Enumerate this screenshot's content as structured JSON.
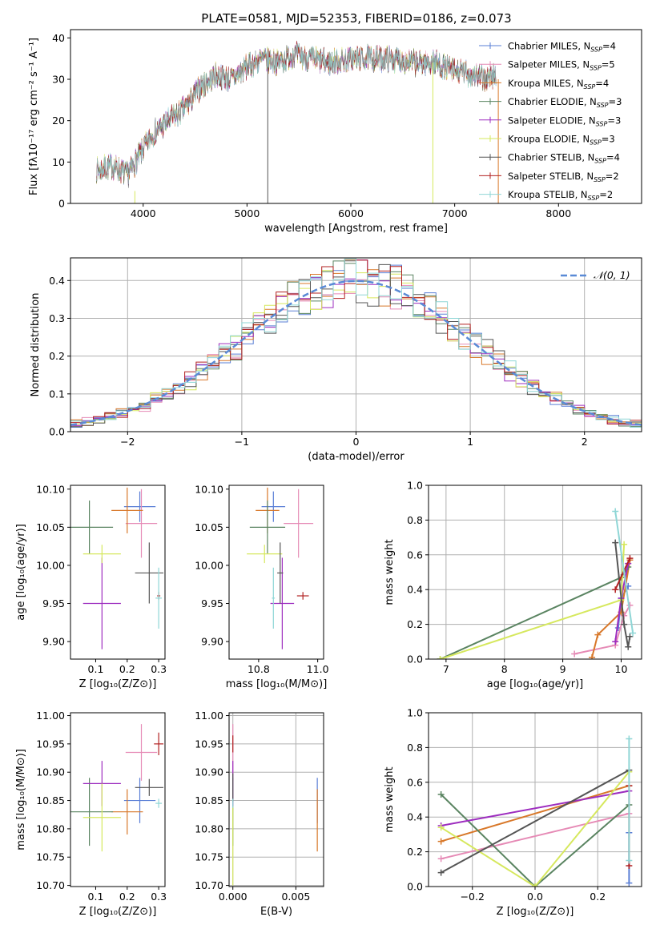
{
  "figure": {
    "title": "PLATE=0581, MJD=52353, FIBERID=0186, z=0.073"
  },
  "colors": {
    "chabrier_miles": "#5a7fd6",
    "salpeter_miles": "#e68bb6",
    "kroupa_miles": "#d8782a",
    "chabrier_elodie": "#5a8461",
    "salpeter_elodie": "#9d2dbf",
    "kroupa_elodie": "#d6e85e",
    "chabrier_stelib": "#555555",
    "salpeter_stelib": "#b22222",
    "kroupa_stelib": "#8fd6d6",
    "normal_curve": "#5a8ad6",
    "grid": "#b0b0b0"
  },
  "chart_data": [
    {
      "id": "spectrum",
      "type": "line",
      "title": "PLATE=0581, MJD=52353, FIBERID=0186, z=0.073",
      "xlabel": "wavelength [Angstrom, rest frame]",
      "ylabel": "Flux [fλ10⁻¹⁷ erg cm⁻² s⁻¹ A⁻¹]",
      "xlim": [
        3300,
        8800
      ],
      "ylim": [
        0,
        42
      ],
      "xticks": [
        4000,
        5000,
        6000,
        7000,
        8000
      ],
      "yticks": [
        0,
        10,
        20,
        30,
        40
      ],
      "grid": false,
      "legend_position": "top-right",
      "legend": [
        {
          "label": "Chabrier MILES, N",
          "sub": "SSP",
          "suffix": "=4"
        },
        {
          "label": "Salpeter MILES, N",
          "sub": "SSP",
          "suffix": "=5"
        },
        {
          "label": "Kroupa MILES, N",
          "sub": "SSP",
          "suffix": "=4"
        },
        {
          "label": "Chabrier ELODIE, N",
          "sub": "SSP",
          "suffix": "=3"
        },
        {
          "label": "Salpeter ELODIE, N",
          "sub": "SSP",
          "suffix": "=3"
        },
        {
          "label": "Kroupa ELODIE, N",
          "sub": "SSP",
          "suffix": "=3"
        },
        {
          "label": "Chabrier STELIB, N",
          "sub": "SSP",
          "suffix": "=4"
        },
        {
          "label": "Salpeter STELIB, N",
          "sub": "SSP",
          "suffix": "=2"
        },
        {
          "label": "Kroupa STELIB, N",
          "sub": "SSP",
          "suffix": "=2"
        }
      ],
      "spectrum_trend": {
        "wavelength": [
          3550,
          3700,
          3850,
          3950,
          4100,
          4250,
          4400,
          4550,
          4700,
          4850,
          5000,
          5150,
          5300,
          5450,
          5600,
          5800,
          6000,
          6200,
          6400,
          6600,
          6800,
          7000,
          7200,
          7300,
          7400
        ],
        "flux": [
          8,
          9,
          7,
          11,
          17,
          20,
          23,
          28,
          31,
          30,
          33,
          35,
          34,
          36,
          35,
          34,
          35,
          35,
          35,
          34,
          34,
          32,
          31,
          30,
          31
        ]
      },
      "spikes": [
        {
          "x": 5200,
          "ymin": 0,
          "ymax": 33
        },
        {
          "x": 6790,
          "ymin": 0,
          "ymax": 34
        },
        {
          "x": 7420,
          "ymin": 0,
          "ymax": 30
        },
        {
          "x": 3920,
          "ymin": 0,
          "ymax": 3
        }
      ]
    },
    {
      "id": "residual-histogram",
      "type": "step",
      "xlabel": "(data-model)/error",
      "ylabel": "Normed distribution",
      "xlim": [
        -2.5,
        2.5
      ],
      "ylim": [
        0,
        0.46
      ],
      "xticks": [
        -2,
        -1,
        0,
        1,
        2
      ],
      "yticks": [
        0.0,
        0.1,
        0.2,
        0.3,
        0.4
      ],
      "grid": true,
      "legend_position": "top-right",
      "normal_curve_label": "𝒩(0, 1)",
      "bin_start": -2.5,
      "bin_width": 0.1
    },
    {
      "id": "age-vs-z",
      "type": "errorbar",
      "xlabel": "Z [log₁₀(Z/Z⊙)]",
      "ylabel": "age  [log₁₀(age/yr)]",
      "xlim": [
        0.02,
        0.32
      ],
      "ylim": [
        9.877,
        10.105
      ],
      "xticks": [
        0.1,
        0.2,
        0.3
      ],
      "yticks": [
        9.9,
        9.95,
        10.0,
        10.05,
        10.1
      ],
      "grid": false,
      "points": [
        {
          "model": "chabrier_miles",
          "x": 0.24,
          "xerr": 0.05,
          "y": 10.077,
          "yerr": 0.02
        },
        {
          "model": "salpeter_miles",
          "x": 0.245,
          "xerr": 0.05,
          "y": 10.055,
          "yerr": 0.045
        },
        {
          "model": "kroupa_miles",
          "x": 0.2,
          "xerr": 0.05,
          "y": 10.072,
          "yerr": 0.03
        },
        {
          "model": "chabrier_elodie",
          "x": 0.08,
          "xerr": 0.075,
          "y": 10.05,
          "yerr": 0.035
        },
        {
          "model": "salpeter_elodie",
          "x": 0.12,
          "xerr": 0.06,
          "y": 9.95,
          "yerr": 0.06
        },
        {
          "model": "kroupa_elodie",
          "x": 0.12,
          "xerr": 0.06,
          "y": 10.015,
          "yerr": 0.012
        },
        {
          "model": "chabrier_stelib",
          "x": 0.27,
          "xerr": 0.045,
          "y": 9.99,
          "yerr": 0.04
        },
        {
          "model": "salpeter_stelib",
          "x": 0.3,
          "xerr": 0.005,
          "y": 9.96,
          "yerr": 0.005
        },
        {
          "model": "kroupa_stelib",
          "x": 0.3,
          "xerr": 0.01,
          "y": 9.957,
          "yerr": 0.04
        }
      ]
    },
    {
      "id": "age-vs-mass",
      "type": "errorbar",
      "xlabel": "mass [log₁₀(M/M⊙)]",
      "ylabel": "",
      "xlim": [
        10.7,
        11.02
      ],
      "ylim": [
        9.877,
        10.105
      ],
      "xticks": [
        10.8,
        11.0
      ],
      "yticks": [
        9.9,
        9.95,
        10.0,
        10.05,
        10.1
      ],
      "grid": false,
      "points": [
        {
          "model": "chabrier_miles",
          "x": 10.85,
          "xerr": 0.04,
          "y": 10.077,
          "yerr": 0.02
        },
        {
          "model": "salpeter_miles",
          "x": 10.935,
          "xerr": 0.05,
          "y": 10.055,
          "yerr": 0.045
        },
        {
          "model": "kroupa_miles",
          "x": 10.83,
          "xerr": 0.04,
          "y": 10.072,
          "yerr": 0.03
        },
        {
          "model": "chabrier_elodie",
          "x": 10.83,
          "xerr": 0.06,
          "y": 10.05,
          "yerr": 0.035
        },
        {
          "model": "salpeter_elodie",
          "x": 10.88,
          "xerr": 0.04,
          "y": 9.95,
          "yerr": 0.06
        },
        {
          "model": "kroupa_elodie",
          "x": 10.82,
          "xerr": 0.06,
          "y": 10.015,
          "yerr": 0.012
        },
        {
          "model": "chabrier_stelib",
          "x": 10.873,
          "xerr": 0.01,
          "y": 9.99,
          "yerr": 0.04
        },
        {
          "model": "salpeter_stelib",
          "x": 10.95,
          "xerr": 0.02,
          "y": 9.96,
          "yerr": 0.005
        },
        {
          "model": "kroupa_stelib",
          "x": 10.85,
          "xerr": 0.005,
          "y": 9.957,
          "yerr": 0.04
        }
      ]
    },
    {
      "id": "mass-weight-vs-age",
      "type": "line",
      "xlabel": "age  [log₁₀(age/yr)]",
      "ylabel": "mass weight",
      "xlim": [
        6.7,
        10.35
      ],
      "ylim": [
        0,
        1
      ],
      "xticks": [
        7,
        8,
        9,
        10
      ],
      "yticks": [
        0.0,
        0.2,
        0.4,
        0.6,
        0.8,
        1.0
      ],
      "grid": true,
      "series": [
        {
          "model": "chabrier_miles",
          "x": [
            9.95,
            10.0,
            10.12
          ],
          "y": [
            0.18,
            0.35,
            0.42
          ]
        },
        {
          "model": "salpeter_miles",
          "x": [
            9.2,
            9.9,
            10.05,
            10.15
          ],
          "y": [
            0.03,
            0.08,
            0.25,
            0.31
          ]
        },
        {
          "model": "kroupa_miles",
          "x": [
            9.5,
            9.6,
            10.0,
            10.15
          ],
          "y": [
            0.01,
            0.14,
            0.27,
            0.57
          ]
        },
        {
          "model": "chabrier_elodie",
          "x": [
            6.9,
            10.0,
            10.12
          ],
          "y": [
            0.0,
            0.47,
            0.53
          ]
        },
        {
          "model": "salpeter_elodie",
          "x": [
            9.9,
            10.0,
            10.12
          ],
          "y": [
            0.1,
            0.35,
            0.55
          ]
        },
        {
          "model": "kroupa_elodie",
          "x": [
            6.9,
            10.0,
            10.05
          ],
          "y": [
            0.0,
            0.34,
            0.66
          ]
        },
        {
          "model": "chabrier_stelib",
          "x": [
            9.9,
            10.05,
            10.12,
            10.15
          ],
          "y": [
            0.67,
            0.2,
            0.07,
            0.13
          ]
        },
        {
          "model": "salpeter_stelib",
          "x": [
            9.9,
            10.15
          ],
          "y": [
            0.4,
            0.58
          ]
        },
        {
          "model": "kroupa_stelib",
          "x": [
            9.9,
            10.2
          ],
          "y": [
            0.85,
            0.15
          ]
        }
      ]
    },
    {
      "id": "mass-vs-z",
      "type": "errorbar",
      "xlabel": "Z [log₁₀(Z/Z⊙)]",
      "ylabel": "mass [log₁₀(M/M⊙)]",
      "xlim": [
        0.02,
        0.32
      ],
      "ylim": [
        10.698,
        11.005
      ],
      "xticks": [
        0.1,
        0.2,
        0.3
      ],
      "yticks": [
        10.7,
        10.75,
        10.8,
        10.85,
        10.9,
        10.95,
        11.0
      ],
      "grid": false,
      "points": [
        {
          "model": "chabrier_miles",
          "x": 0.24,
          "xerr": 0.05,
          "y": 10.85,
          "yerr": 0.04
        },
        {
          "model": "salpeter_miles",
          "x": 0.245,
          "xerr": 0.05,
          "y": 10.935,
          "yerr": 0.05
        },
        {
          "model": "kroupa_miles",
          "x": 0.2,
          "xerr": 0.05,
          "y": 10.83,
          "yerr": 0.04
        },
        {
          "model": "chabrier_elodie",
          "x": 0.08,
          "xerr": 0.075,
          "y": 10.83,
          "yerr": 0.06
        },
        {
          "model": "salpeter_elodie",
          "x": 0.12,
          "xerr": 0.06,
          "y": 10.88,
          "yerr": 0.04
        },
        {
          "model": "kroupa_elodie",
          "x": 0.12,
          "xerr": 0.06,
          "y": 10.82,
          "yerr": 0.06
        },
        {
          "model": "chabrier_stelib",
          "x": 0.27,
          "xerr": 0.045,
          "y": 10.873,
          "yerr": 0.015
        },
        {
          "model": "salpeter_stelib",
          "x": 0.3,
          "xerr": 0.015,
          "y": 10.95,
          "yerr": 0.02
        },
        {
          "model": "kroupa_stelib",
          "x": 0.3,
          "xerr": 0.01,
          "y": 10.845,
          "yerr": 0.008
        }
      ]
    },
    {
      "id": "mass-vs-ebv",
      "type": "errorbar",
      "xlabel": "E(B-V)",
      "ylabel": "",
      "xlim": [
        -0.0003,
        0.0072
      ],
      "ylim": [
        10.698,
        11.005
      ],
      "xticks": [
        0.0,
        0.005
      ],
      "yticks": [
        10.7,
        10.75,
        10.8,
        10.85,
        10.9,
        10.95,
        11.0
      ],
      "grid": true,
      "points": [
        {
          "model": "chabrier_miles",
          "x": 0.0067,
          "xerr": 0,
          "y": 10.85,
          "yerr": 0.04
        },
        {
          "model": "salpeter_miles",
          "x": 0.0,
          "xerr": 0,
          "y": 10.935,
          "yerr": 0.05
        },
        {
          "model": "kroupa_miles",
          "x": 0.0067,
          "xerr": 0,
          "y": 10.815,
          "yerr": 0.055
        },
        {
          "model": "chabrier_elodie",
          "x": 0.0,
          "xerr": 0,
          "y": 10.83,
          "yerr": 0.06
        },
        {
          "model": "salpeter_elodie",
          "x": 0.0,
          "xerr": 0,
          "y": 10.88,
          "yerr": 0.04
        },
        {
          "model": "kroupa_elodie",
          "x": 0.0,
          "xerr": 0,
          "y": 10.77,
          "yerr": 0.07
        },
        {
          "model": "chabrier_stelib",
          "x": 0.0,
          "xerr": 0,
          "y": 10.873,
          "yerr": 0.025
        },
        {
          "model": "salpeter_stelib",
          "x": 0.0,
          "xerr": 0,
          "y": 10.95,
          "yerr": 0.015
        },
        {
          "model": "kroupa_stelib",
          "x": 0.0,
          "xerr": 0,
          "y": 10.845,
          "yerr": 0.008
        }
      ]
    },
    {
      "id": "mass-weight-vs-z",
      "type": "line",
      "xlabel": "Z [log₁₀(Z/Z⊙)]",
      "ylabel": "mass weight",
      "xlim": [
        -0.34,
        0.34
      ],
      "ylim": [
        0,
        1
      ],
      "xticks": [
        -0.2,
        0.0,
        0.2
      ],
      "yticks": [
        0.0,
        0.2,
        0.4,
        0.6,
        0.8,
        1.0
      ],
      "grid": true,
      "series": [
        {
          "model": "chabrier_miles",
          "x": [
            0.3,
            0.3
          ],
          "y": [
            0.02,
            0.31
          ]
        },
        {
          "model": "salpeter_miles",
          "x": [
            -0.3,
            0.3
          ],
          "y": [
            0.16,
            0.42
          ]
        },
        {
          "model": "kroupa_miles",
          "x": [
            -0.3,
            0.3
          ],
          "y": [
            0.26,
            0.58
          ]
        },
        {
          "model": "chabrier_elodie",
          "x": [
            -0.3,
            0.0,
            0.3
          ],
          "y": [
            0.53,
            0.0,
            0.47
          ]
        },
        {
          "model": "salpeter_elodie",
          "x": [
            -0.3,
            0.3
          ],
          "y": [
            0.35,
            0.55
          ]
        },
        {
          "model": "kroupa_elodie",
          "x": [
            -0.3,
            0.0,
            0.3
          ],
          "y": [
            0.34,
            0.0,
            0.66
          ]
        },
        {
          "model": "chabrier_stelib",
          "x": [
            -0.3,
            0.3
          ],
          "y": [
            0.08,
            0.67
          ]
        },
        {
          "model": "salpeter_stelib",
          "x": [
            0.3,
            0.3
          ],
          "y": [
            0.12,
            0.58
          ]
        },
        {
          "model": "kroupa_stelib",
          "x": [
            0.3,
            0.3
          ],
          "y": [
            0.15,
            0.85
          ]
        }
      ]
    }
  ]
}
